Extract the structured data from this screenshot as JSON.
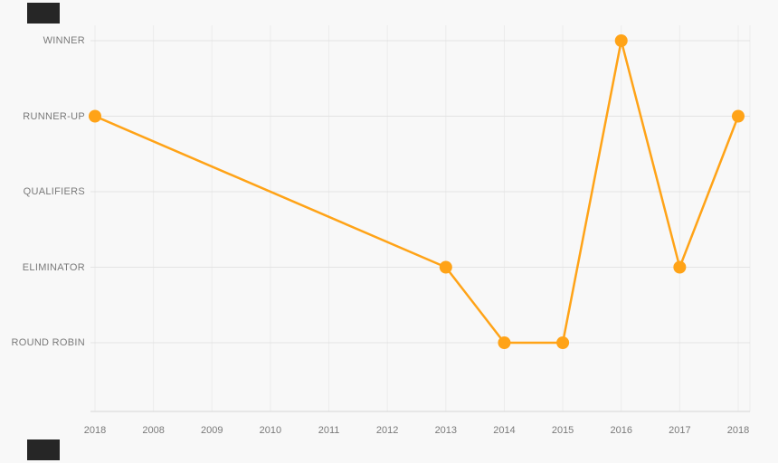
{
  "page": {
    "background": "#f8f8f8"
  },
  "chart_data": {
    "type": "line",
    "title": "",
    "xlabel": "",
    "ylabel": "",
    "legend": "none",
    "grid": true,
    "x_tick_labels": [
      "2018",
      "2008",
      "2009",
      "2010",
      "2011",
      "2012",
      "2013",
      "2014",
      "2015",
      "2016",
      "2017",
      "2018"
    ],
    "y_tick_labels": [
      "WINNER",
      "RUNNER-UP",
      "QUALIFIERS",
      "ELIMINATOR",
      "ROUND ROBIN"
    ],
    "series": [
      {
        "name": "season-result",
        "color": "#FFA317",
        "values": [
          "RUNNER-UP",
          null,
          null,
          null,
          null,
          null,
          "ELIMINATOR",
          "ROUND ROBIN",
          "ROUND ROBIN",
          "WINNER",
          "ELIMINATOR",
          "RUNNER-UP"
        ]
      }
    ]
  },
  "colors": {
    "line": "#FFA317",
    "marker": "#FFA317",
    "grid_vertical": "#ececec",
    "grid_horizontal": "#e3e3e3",
    "axis_line": "#d6d6d6",
    "label": "#7a7a7a",
    "background": "#f8f8f8",
    "artifact": "#262626"
  }
}
